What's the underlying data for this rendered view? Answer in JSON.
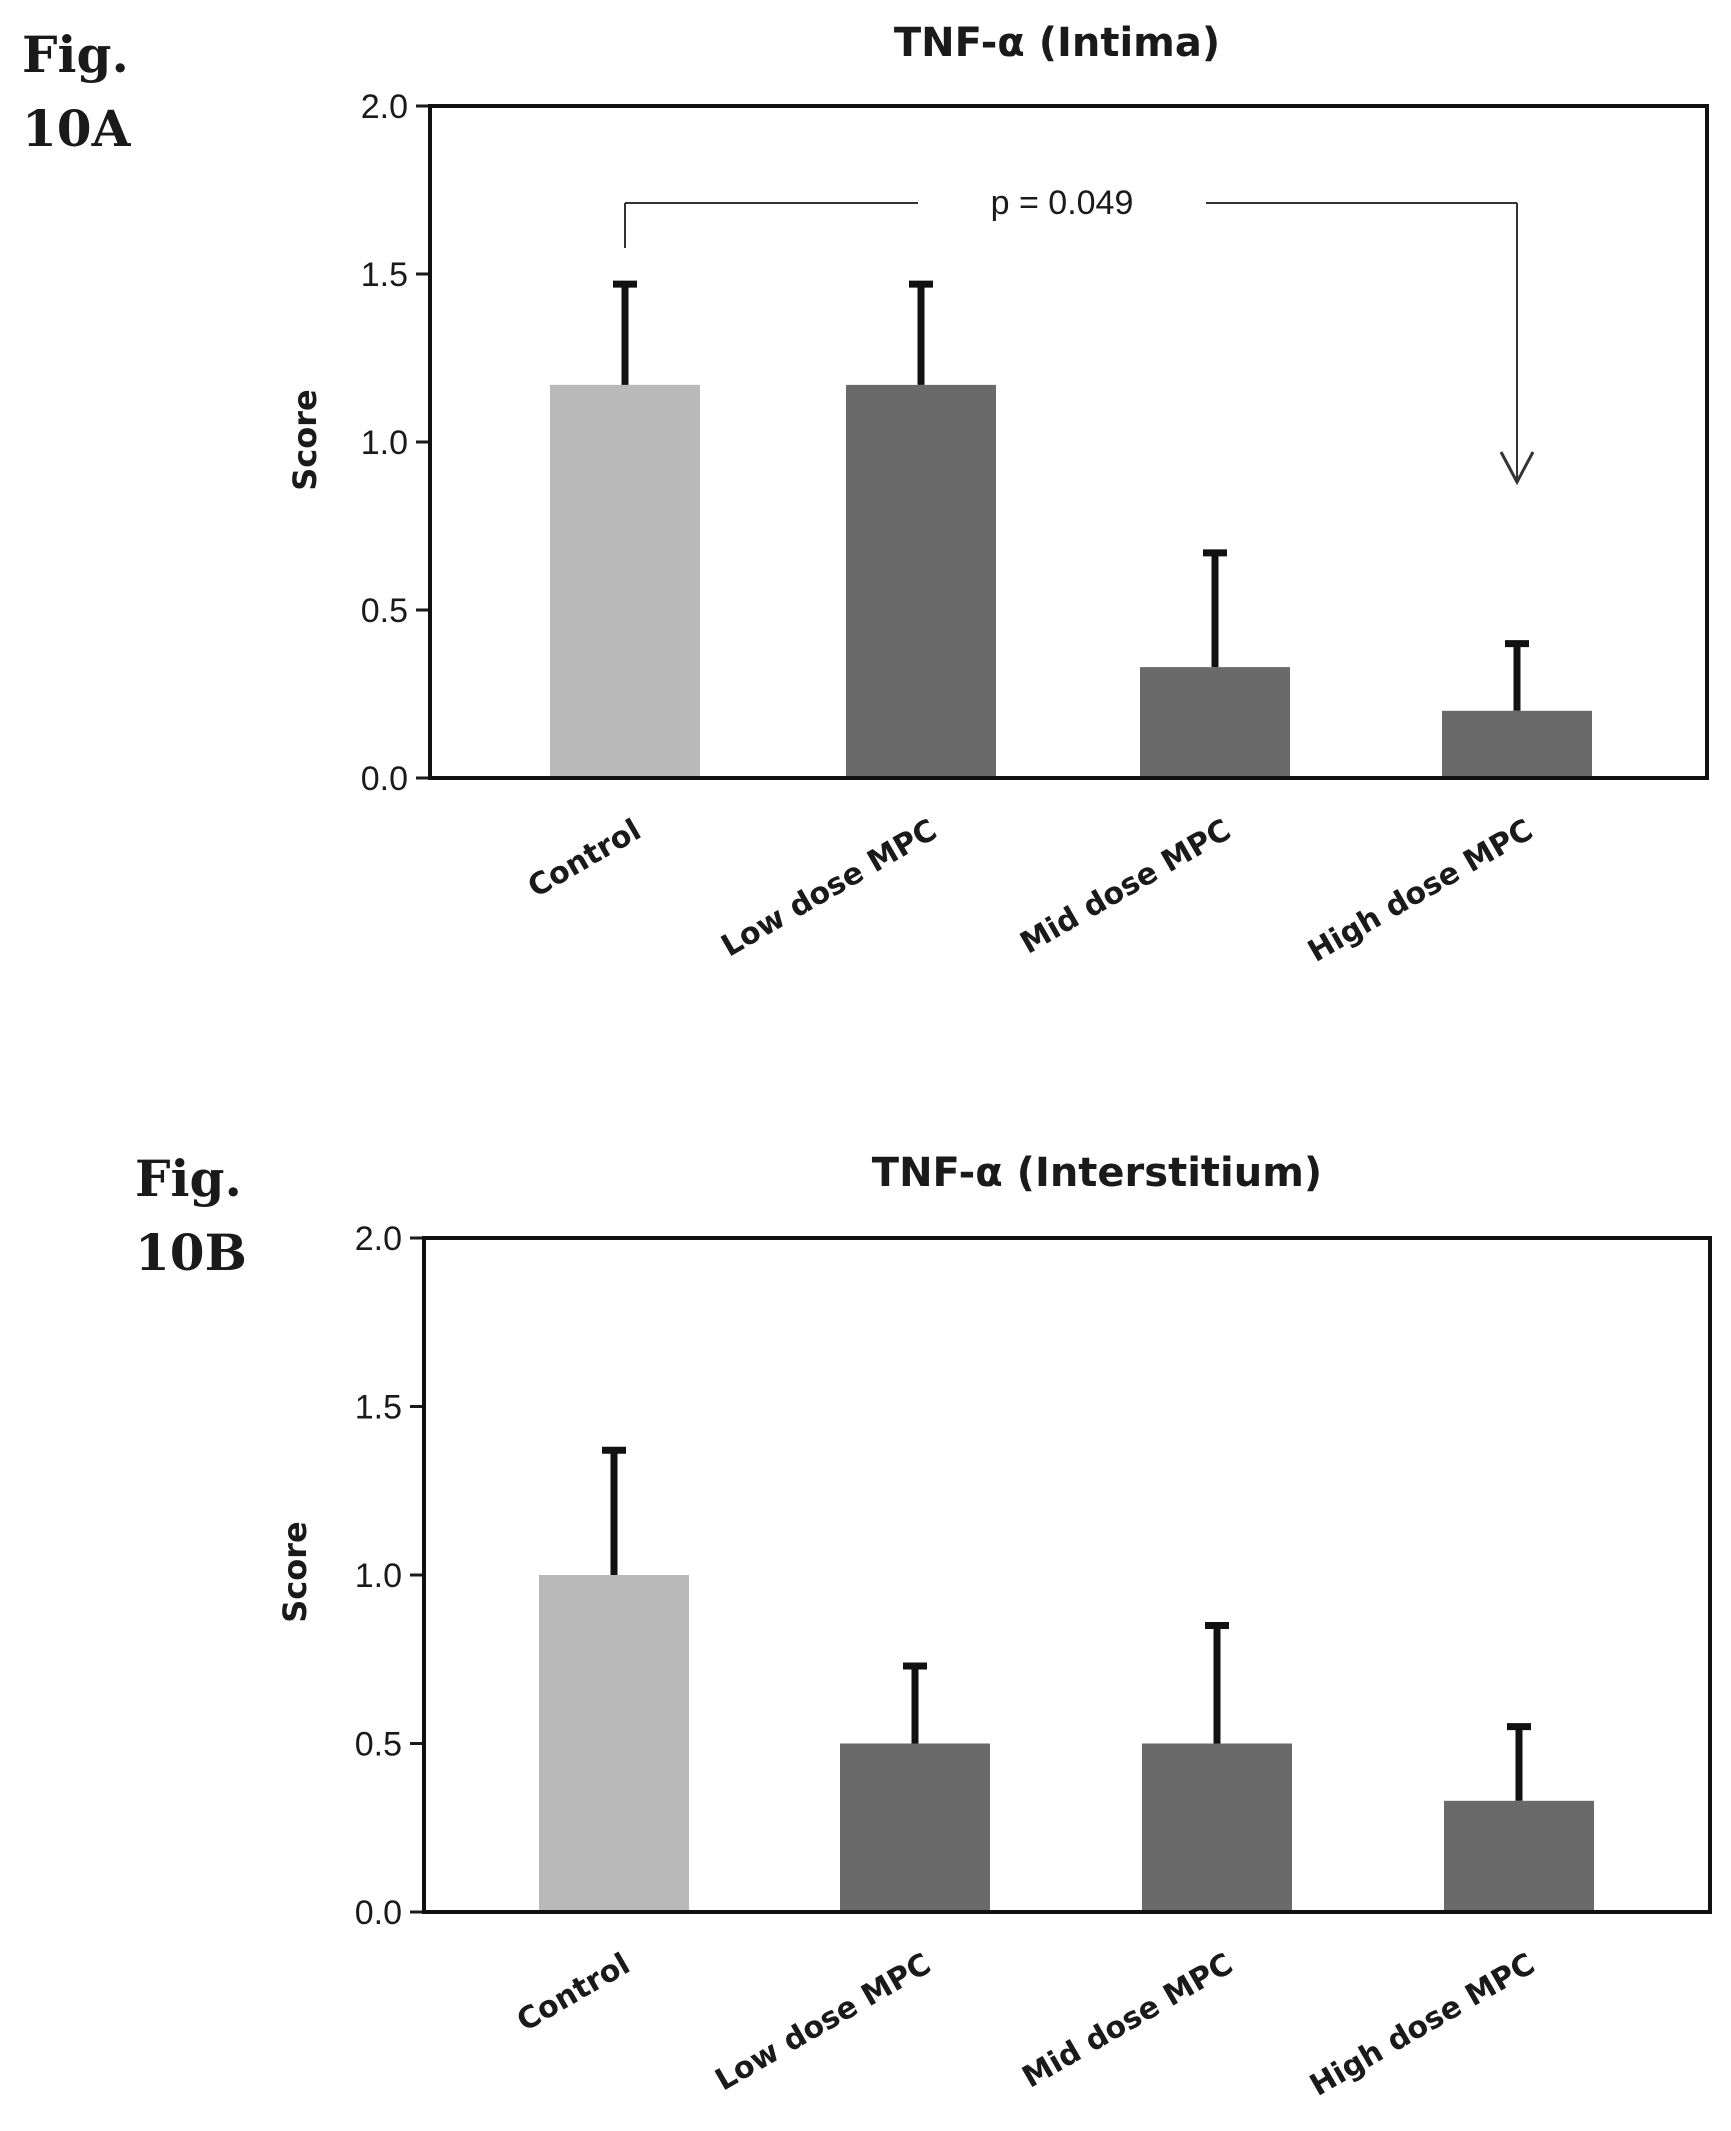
{
  "figures": [
    {
      "label_line1": "Fig.",
      "label_line2": "10A",
      "annotation": {
        "text": "p = 0.049",
        "from_category": "Control",
        "to_category": "High dose MPC"
      }
    },
    {
      "label_line1": "Fig.",
      "label_line2": "10B"
    }
  ],
  "chart_data": [
    {
      "type": "bar",
      "title": "TNF-α (Intima)",
      "xlabel": "",
      "ylabel": "Score",
      "ylim": [
        0,
        2.0
      ],
      "yticks": [
        "0.0",
        "0.5",
        "1.0",
        "1.5",
        "2.0"
      ],
      "grid": false,
      "categories": [
        "Control",
        "Low dose MPC",
        "Mid dose MPC",
        "High dose MPC"
      ],
      "values": [
        1.17,
        1.17,
        0.33,
        0.2
      ],
      "error_upper": [
        0.3,
        0.3,
        0.34,
        0.2
      ],
      "bar_colors": [
        "#b9b9b9",
        "#6a6a6a",
        "#6a6a6a",
        "#6a6a6a"
      ]
    },
    {
      "type": "bar",
      "title": "TNF-α (Interstitium)",
      "xlabel": "",
      "ylabel": "Score",
      "ylim": [
        0,
        2.0
      ],
      "yticks": [
        "0.0",
        "0.5",
        "1.0",
        "1.5",
        "2.0"
      ],
      "grid": false,
      "categories": [
        "Control",
        "Low dose MPC",
        "Mid dose MPC",
        "High dose MPC"
      ],
      "values": [
        1.0,
        0.5,
        0.5,
        0.33
      ],
      "error_upper": [
        0.37,
        0.23,
        0.35,
        0.22
      ],
      "bar_colors": [
        "#b9b9b9",
        "#6a6a6a",
        "#6a6a6a",
        "#6a6a6a"
      ]
    }
  ]
}
